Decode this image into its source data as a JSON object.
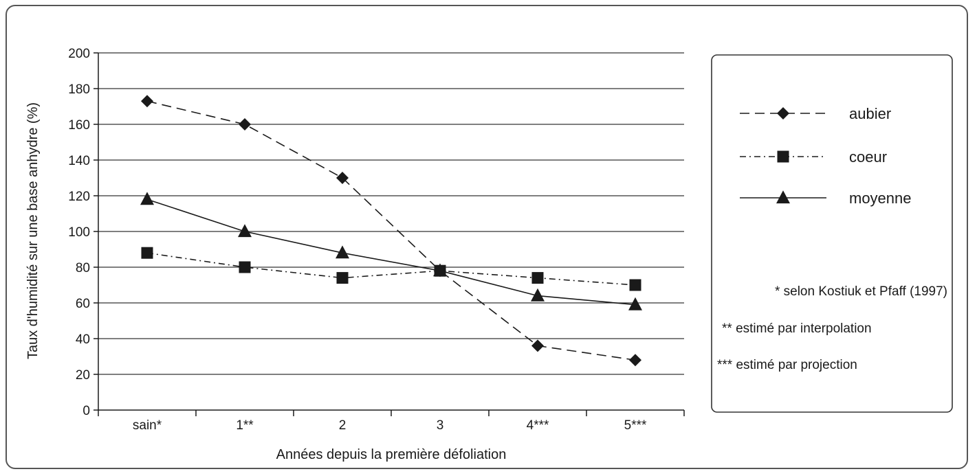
{
  "chart_data": {
    "type": "line",
    "categories": [
      "sain*",
      "1**",
      "2",
      "3",
      "4***",
      "5***"
    ],
    "series": [
      {
        "name": "aubier",
        "values": [
          173,
          160,
          130,
          78,
          36,
          28
        ],
        "marker": "diamond",
        "line_style": "dashed"
      },
      {
        "name": "coeur",
        "values": [
          88,
          80,
          74,
          78,
          74,
          70
        ],
        "marker": "square",
        "line_style": "dash-dot"
      },
      {
        "name": "moyenne",
        "values": [
          118,
          100,
          88,
          78,
          64,
          59
        ],
        "marker": "triangle",
        "line_style": "solid"
      }
    ],
    "title": "",
    "xlabel": "Années depuis la première défoliation",
    "ylabel": "Taux d'humidité sur une base anhydre (%)",
    "ylim": [
      0,
      200
    ],
    "yticks": [
      0,
      20,
      40,
      60,
      80,
      100,
      120,
      140,
      160,
      180,
      200
    ],
    "grid": "horizontal",
    "legend_position": "right",
    "notes": [
      "* selon Kostiuk et Pfaff (1997)",
      "** estimé par interpolation",
      "*** estimé par projection"
    ],
    "colors": {
      "line": "#1a1a1a",
      "grid": "#333333",
      "axis": "#1a1a1a"
    }
  }
}
